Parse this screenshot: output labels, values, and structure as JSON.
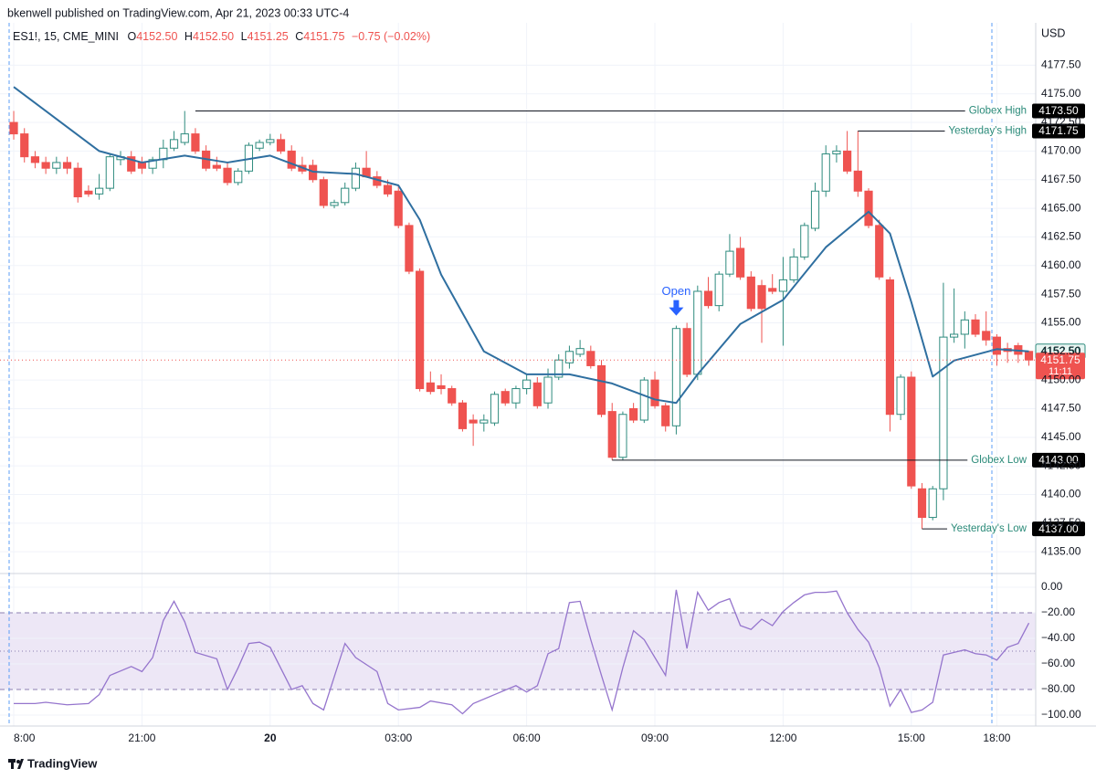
{
  "header": {
    "published": "bkenwell published on TradingView.com, Apr 21, 2023 00:33 UTC-4",
    "symbol": "ES1!, 15, CME_MINI",
    "ohlc": [
      {
        "key": "O",
        "value": "4152.50"
      },
      {
        "key": "H",
        "value": "4152.50"
      },
      {
        "key": "L",
        "value": "4151.25"
      },
      {
        "key": "C",
        "value": "4151.75"
      }
    ],
    "change": "−0.75 (−0.02%)",
    "currency": "USD"
  },
  "footer": {
    "brand": "TradingView"
  },
  "chart_data": [
    {
      "type": "candlestick",
      "up_color": "#2e8b7e",
      "down_color": "#ef5350",
      "grid": true,
      "xlim": [
        -0.43,
        95.64
      ],
      "ylim": [
        4133.1,
        4180.8
      ],
      "xticks": [
        {
          "value": 0,
          "label": "8:00"
        },
        {
          "value": 12,
          "label": "21:00"
        },
        {
          "value": 24,
          "label": "20"
        },
        {
          "value": 36,
          "label": "03:00"
        },
        {
          "value": 48,
          "label": "06:00"
        },
        {
          "value": 60,
          "label": "09:00"
        },
        {
          "value": 72,
          "label": "12:00"
        },
        {
          "value": 84,
          "label": "15:00"
        },
        {
          "value": 92,
          "label": "18:00"
        }
      ],
      "yticks": [
        {
          "value": 4135,
          "label": "4135.00"
        },
        {
          "value": 4137.5,
          "label": "4137.50"
        },
        {
          "value": 4140,
          "label": "4140.00"
        },
        {
          "value": 4142.5,
          "label": "4142.50"
        },
        {
          "value": 4145,
          "label": "4145.00"
        },
        {
          "value": 4147.5,
          "label": "4147.50"
        },
        {
          "value": 4150,
          "label": "4150.00"
        },
        {
          "value": 4152.5,
          "label": "4152.50"
        },
        {
          "value": 4155,
          "label": "4155.00"
        },
        {
          "value": 4157.5,
          "label": "4157.50"
        },
        {
          "value": 4160,
          "label": "4160.00"
        },
        {
          "value": 4162.5,
          "label": "4162.50"
        },
        {
          "value": 4165,
          "label": "4165.00"
        },
        {
          "value": 4167.5,
          "label": "4167.50"
        },
        {
          "value": 4170,
          "label": "4170.00"
        },
        {
          "value": 4172.5,
          "label": "4172.50"
        },
        {
          "value": 4175,
          "label": "4175.00"
        },
        {
          "value": 4177.5,
          "label": "4177.50"
        }
      ],
      "open": [
        4172.5,
        4171.5,
        4169.5,
        4169,
        4168.5,
        4169,
        4168.5,
        4166.5,
        4166.25,
        4166.75,
        4169.25,
        4169.5,
        4169,
        4168.5,
        4169.25,
        4170.25,
        4170.75,
        4171.5,
        4170,
        4168.75,
        4168.5,
        4167.25,
        4168.25,
        4170.25,
        4170.75,
        4171,
        4170,
        4168.75,
        4168.75,
        4167.5,
        4165.25,
        4165.5,
        4166.75,
        4168.5,
        4167.75,
        4167,
        4166.5,
        4163.5,
        4159.5,
        4149.75,
        4149.5,
        4149.25,
        4148,
        4146.5,
        4146.25,
        4146.25,
        4149,
        4148,
        4149.25,
        4149.75,
        4148,
        4150.25,
        4151.5,
        4152.25,
        4152.5,
        4151.25,
        4147.25,
        4143.25,
        4147.5,
        4146.5,
        4150,
        4147.75,
        4146,
        4154.5,
        4150.5,
        4157.75,
        4156.5,
        4159.25,
        4161.5,
        4159,
        4158.25,
        4158,
        4157.75,
        4158.75,
        4160.75,
        4163.25,
        4166.5,
        4169.75,
        4170,
        4168.25,
        4166.5,
        4163.5,
        4158.75,
        4147,
        4150.25,
        4140.5,
        4138,
        4140.5,
        4153.75,
        4154,
        4155.25,
        4154.25,
        4153.75,
        4152.75,
        4153,
        4152.5
      ],
      "high": [
        4173.5,
        4172,
        4170,
        4169.5,
        4169.5,
        4169.5,
        4169,
        4167,
        4168,
        4169.75,
        4170,
        4170,
        4169.5,
        4169.5,
        4171,
        4171.75,
        4173.5,
        4172,
        4170.5,
        4169.5,
        4169,
        4168.5,
        4170.75,
        4171,
        4171.5,
        4171.5,
        4170.5,
        4169.5,
        4169.25,
        4167.75,
        4165.75,
        4167.25,
        4169,
        4170,
        4168.25,
        4167.5,
        4167,
        4163.75,
        4159.75,
        4150.75,
        4150.5,
        4149.5,
        4148.25,
        4147,
        4147,
        4149,
        4149.25,
        4149.5,
        4150.5,
        4150.25,
        4151,
        4152.25,
        4153,
        4153.5,
        4153,
        4151.75,
        4148,
        4147.25,
        4148,
        4150.25,
        4150.75,
        4148,
        4154.75,
        4155,
        4158.25,
        4159,
        4159.5,
        4162.75,
        4162.5,
        4159.5,
        4158.75,
        4159.25,
        4160.75,
        4161.5,
        4163.75,
        4167.25,
        4170.5,
        4170.5,
        4171.75,
        4171.75,
        4166.75,
        4164,
        4159,
        4150.5,
        4150.75,
        4141,
        4140.75,
        4158.5,
        4158,
        4156,
        4155.75,
        4156,
        4154,
        4153.25,
        4153.25,
        4152.5
      ],
      "low": [
        4171,
        4169,
        4168.5,
        4168,
        4168,
        4168,
        4165.5,
        4166,
        4165.75,
        4166.5,
        4168.75,
        4168,
        4168,
        4168,
        4168.5,
        4170,
        4170.5,
        4169.75,
        4168.25,
        4168.25,
        4167,
        4167,
        4168,
        4170,
        4170.5,
        4169.75,
        4168.25,
        4168,
        4167.25,
        4165,
        4165,
        4165.25,
        4166.5,
        4167.75,
        4166.75,
        4166,
        4163.25,
        4159.25,
        4149,
        4148.75,
        4148.75,
        4147.75,
        4145.5,
        4144.25,
        4145.5,
        4146,
        4147.75,
        4147.5,
        4148.75,
        4147.5,
        4147.5,
        4150,
        4151,
        4152,
        4151,
        4146.75,
        4143,
        4143,
        4146.25,
        4146.25,
        4147.5,
        4145.5,
        4145.25,
        4150.25,
        4150,
        4156.25,
        4156,
        4159,
        4158.75,
        4156,
        4153.25,
        4157.5,
        4153,
        4158.5,
        4160.5,
        4163,
        4166,
        4169,
        4168,
        4166,
        4163.25,
        4158.75,
        4145.5,
        4146.5,
        4140.5,
        4137,
        4137.75,
        4139.5,
        4153.25,
        4152.75,
        4153.75,
        4153,
        4151.25,
        4151.5,
        4151.5,
        4151.25
      ],
      "close": [
        4171.5,
        4169.5,
        4169,
        4168.5,
        4169,
        4168.5,
        4166,
        4166.25,
        4166.75,
        4169.5,
        4169.5,
        4168.25,
        4168.5,
        4169.25,
        4170.25,
        4171,
        4171.5,
        4170,
        4168.5,
        4168.5,
        4167.25,
        4168.25,
        4170.5,
        4170.75,
        4171,
        4170,
        4168.5,
        4168.25,
        4167.5,
        4165.25,
        4165.5,
        4166.75,
        4168.5,
        4167.75,
        4167,
        4166.25,
        4163.5,
        4159.5,
        4149.25,
        4149,
        4149.25,
        4148,
        4145.75,
        4146.25,
        4146.5,
        4148.75,
        4148,
        4149.25,
        4150,
        4147.75,
        4150.25,
        4151.75,
        4152.5,
        4152.75,
        4151.25,
        4147,
        4143.25,
        4147,
        4146.5,
        4150,
        4147.75,
        4146,
        4154.5,
        4150.5,
        4157.75,
        4156.5,
        4159.25,
        4161.25,
        4159,
        4156.25,
        4156.25,
        4157.75,
        4158.75,
        4160.75,
        4163.5,
        4166.5,
        4169.75,
        4170,
        4168.25,
        4166.5,
        4163.5,
        4159,
        4147,
        4150.25,
        4140.75,
        4138,
        4140.5,
        4153.75,
        4154,
        4155.25,
        4154,
        4153.5,
        4152.25,
        4152.5,
        4152.25,
        4151.75
      ],
      "ma": {
        "color": "#2f6fa0",
        "x": [
          0,
          4,
          8,
          12,
          16,
          20,
          24,
          28,
          32,
          36,
          38,
          40,
          44,
          48,
          52,
          56,
          60,
          62,
          64,
          68,
          72,
          76,
          80,
          82,
          84,
          86,
          88,
          92,
          95
        ],
        "values": [
          4175.6,
          4172.8,
          4170,
          4169,
          4169.6,
          4169,
          4169.6,
          4168.2,
          4168,
          4167,
          4164,
          4159.2,
          4152.5,
          4150.5,
          4150.5,
          4149.7,
          4148.3,
          4148,
          4150.5,
          4154.9,
          4157,
          4161.6,
          4164.7,
          4162.8,
          4156.8,
          4150.3,
          4151.7,
          4152.7,
          4152.5
        ]
      },
      "levels": [
        {
          "label": "Globex High",
          "value": 4173.5,
          "value_label": "4173.50",
          "start": 17
        },
        {
          "label": "Yesterday's High",
          "value": 4171.75,
          "value_label": "4171.75",
          "start": 79
        },
        {
          "label": "Globex Low",
          "value": 4143,
          "value_label": "4143.00",
          "start": 56
        },
        {
          "label": "Yesterday's Low",
          "value": 4137,
          "value_label": "4137.00",
          "start": 85
        }
      ],
      "last": {
        "value": 4151.75,
        "label": "4151.75",
        "countdown": "11:11"
      },
      "ma_last": {
        "value": 4152.5,
        "label": "4152.50"
      },
      "annotation": {
        "text": "Open",
        "index": 62
      }
    },
    {
      "type": "line",
      "color": "#9575cd",
      "band": [
        -20,
        -80
      ],
      "midline": -50,
      "band_color": "#ede7f6",
      "ylim": [
        -108.6,
        9.3
      ],
      "yticks": [
        {
          "value": 0,
          "label": "0.00"
        },
        {
          "value": -20,
          "label": "−20.00"
        },
        {
          "value": -40,
          "label": "−40.00"
        },
        {
          "value": -60,
          "label": "−60.00"
        },
        {
          "value": -80,
          "label": "−80.00"
        },
        {
          "value": -100,
          "label": "−100.00"
        }
      ],
      "x": [
        0,
        2,
        3,
        5,
        7,
        8,
        9,
        11,
        12,
        13,
        14,
        15,
        16,
        17,
        19,
        20,
        21,
        22,
        23,
        24,
        26,
        27,
        28,
        29,
        30,
        31,
        32,
        34,
        35,
        36,
        38,
        39,
        41,
        42,
        43,
        45,
        47,
        48,
        49,
        50,
        51,
        52,
        53,
        54,
        55,
        56,
        57,
        58,
        59,
        60,
        61,
        62,
        63,
        64,
        65,
        66,
        67,
        68,
        69,
        70,
        71,
        72,
        73,
        74,
        75,
        76,
        77,
        78,
        79,
        80,
        81,
        82,
        83,
        84,
        85,
        86,
        87,
        88,
        89,
        90,
        91,
        92,
        93,
        94,
        95
      ],
      "values": [
        -91,
        -91,
        -90,
        -92,
        -91,
        -84,
        -69,
        -62,
        -66,
        -55,
        -26,
        -11,
        -27,
        -51,
        -56,
        -80,
        -63,
        -44,
        -43,
        -47,
        -80,
        -77,
        -91,
        -96,
        -70,
        -44,
        -55,
        -66,
        -91,
        -96,
        -94,
        -89,
        -92,
        -99,
        -91,
        -84,
        -77,
        -82,
        -77,
        -52,
        -48,
        -12,
        -11,
        -41,
        -69,
        -96,
        -63,
        -34,
        -41,
        -55,
        -69,
        -2,
        -48,
        -4,
        -18,
        -12,
        -9,
        -30,
        -33,
        -25,
        -30,
        -19,
        -12,
        -6,
        -4,
        -4,
        -3,
        -20,
        -33,
        -43,
        -63,
        -93,
        -80,
        -98,
        -96,
        -90,
        -53,
        -51,
        -49,
        -52,
        -53,
        -57,
        -47,
        -44,
        -28
      ]
    }
  ]
}
